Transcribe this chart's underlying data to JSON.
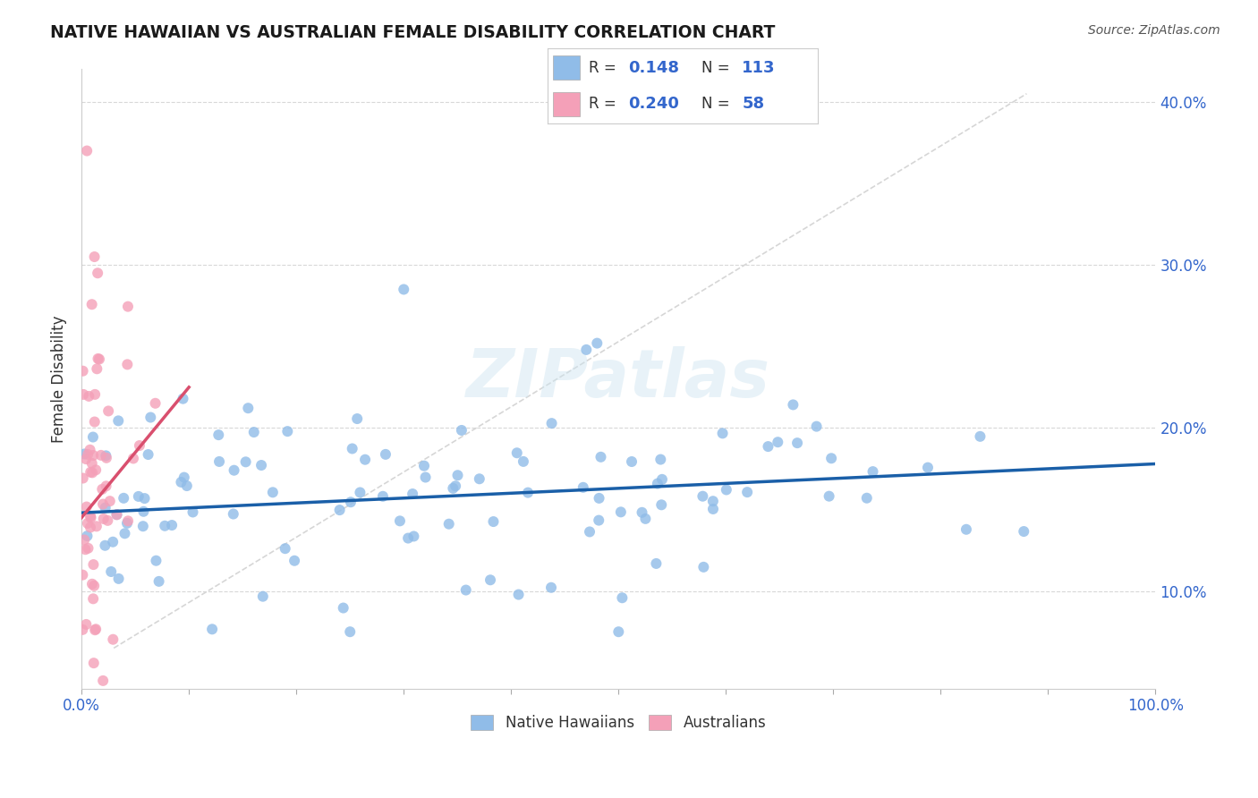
{
  "title": "NATIVE HAWAIIAN VS AUSTRALIAN FEMALE DISABILITY CORRELATION CHART",
  "source": "Source: ZipAtlas.com",
  "ylabel": "Female Disability",
  "xlim": [
    0,
    1.0
  ],
  "ylim": [
    0.04,
    0.42
  ],
  "xtick_positions": [
    0.0,
    0.1,
    0.2,
    0.3,
    0.4,
    0.5,
    0.6,
    0.7,
    0.8,
    0.9,
    1.0
  ],
  "xticklabels": [
    "0.0%",
    "",
    "",
    "",
    "",
    "",
    "",
    "",
    "",
    "",
    "100.0%"
  ],
  "ytick_positions": [
    0.1,
    0.2,
    0.3,
    0.4
  ],
  "yticklabels": [
    "10.0%",
    "20.0%",
    "30.0%",
    "40.0%"
  ],
  "legend_r1": "0.148",
  "legend_n1": "113",
  "legend_r2": "0.240",
  "legend_n2": "58",
  "blue_color": "#90bce8",
  "pink_color": "#f4a0b8",
  "blue_line_color": "#1a5fa8",
  "pink_line_color": "#d94f6e",
  "ref_line_color": "#cccccc",
  "watermark": "ZIPatlas",
  "background_color": "#ffffff",
  "grid_color": "#d8d8d8",
  "nh_seed": 42,
  "au_seed": 7,
  "title_color": "#1a1a1a",
  "source_color": "#555555",
  "axis_label_color": "#333333",
  "tick_color": "#3366cc"
}
